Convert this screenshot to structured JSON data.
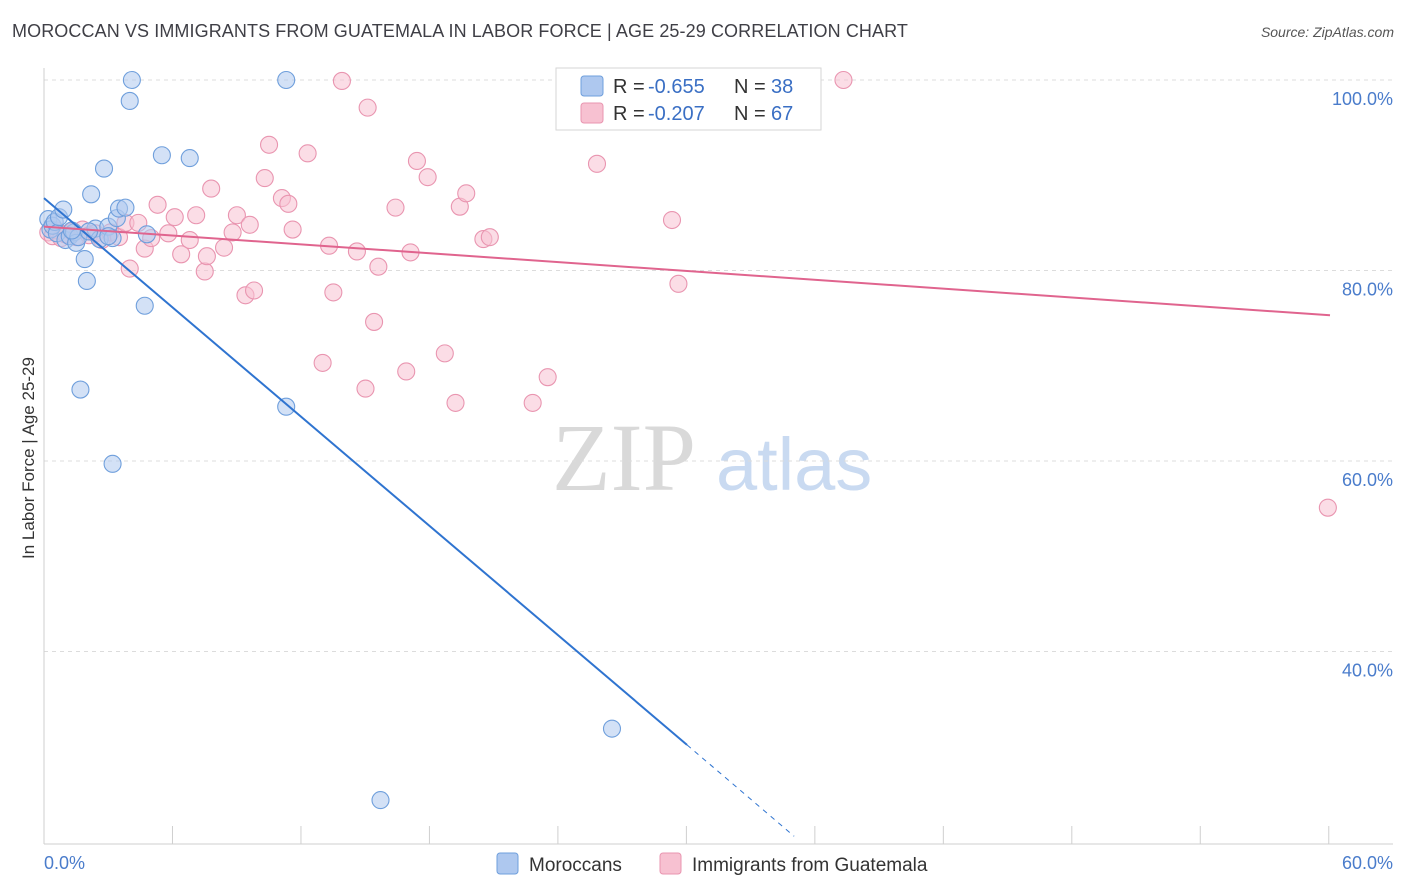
{
  "title": "MOROCCAN VS IMMIGRANTS FROM GUATEMALA IN LABOR FORCE | AGE 25-29 CORRELATION CHART",
  "source": "Source: ZipAtlas.com",
  "watermark": {
    "zip": "ZIP",
    "atlas": "atlas"
  },
  "legend": {
    "rows": [
      {
        "r_label": "R =",
        "r_value": "-0.655",
        "n_label": "N =",
        "n_value": "38"
      },
      {
        "r_label": "R =",
        "r_value": "-0.207",
        "n_label": "N =",
        "n_value": "67"
      }
    ]
  },
  "colors": {
    "moroccans_fill": "#aec8ef",
    "moroccans_stroke": "#6f9fdc",
    "moroccans_line": "#2f74d0",
    "guatemala_fill": "#f7c1d1",
    "guatemala_stroke": "#e995b0",
    "guatemala_line": "#e0648e",
    "tick_text": "#4a7ccb"
  },
  "chart_data": {
    "type": "scatter",
    "title": "MOROCCAN VS IMMIGRANTS FROM GUATEMALA IN LABOR FORCE | AGE 25-29 CORRELATION CHART",
    "xlabel": "",
    "ylabel": "In Labor Force | Age 25-29",
    "xlim": [
      0,
      60
    ],
    "ylim": [
      20,
      100
    ],
    "x_tick_labels": [
      "0.0%",
      "60.0%"
    ],
    "y_ticks": [
      40,
      60,
      80,
      100
    ],
    "y_tick_labels": [
      "40.0%",
      "60.0%",
      "80.0%",
      "100.0%"
    ],
    "grid": true,
    "legend_position": "top-center",
    "series": [
      {
        "name": "Moroccans",
        "r": -0.655,
        "n": 38,
        "trend": {
          "x0": 0,
          "y0": 87.6,
          "x1": 30,
          "y1": 30.2,
          "dash_to_x": 35,
          "dash_to_y": 20.6
        },
        "points": [
          [
            0.2,
            85.4
          ],
          [
            0.3,
            84.3
          ],
          [
            0.4,
            84.7
          ],
          [
            0.5,
            85.1
          ],
          [
            0.6,
            83.9
          ],
          [
            0.7,
            85.6
          ],
          [
            0.9,
            86.4
          ],
          [
            1.0,
            83.2
          ],
          [
            1.2,
            83.6
          ],
          [
            1.4,
            84.0
          ],
          [
            1.5,
            82.9
          ],
          [
            1.6,
            83.5
          ],
          [
            1.9,
            81.2
          ],
          [
            2.0,
            78.9
          ],
          [
            2.2,
            88.0
          ],
          [
            2.4,
            84.4
          ],
          [
            2.6,
            83.3
          ],
          [
            2.8,
            90.7
          ],
          [
            3.0,
            84.6
          ],
          [
            3.2,
            83.4
          ],
          [
            3.4,
            85.5
          ],
          [
            3.5,
            86.5
          ],
          [
            3.8,
            86.6
          ],
          [
            4.0,
            97.8
          ],
          [
            4.1,
            100.0
          ],
          [
            4.7,
            76.3
          ],
          [
            4.8,
            83.8
          ],
          [
            5.5,
            92.1
          ],
          [
            6.8,
            91.8
          ],
          [
            11.3,
            100.0
          ],
          [
            1.7,
            67.5
          ],
          [
            3.2,
            59.7
          ],
          [
            11.3,
            65.7
          ],
          [
            26.5,
            31.9
          ],
          [
            15.7,
            24.4
          ],
          [
            1.3,
            84.2
          ],
          [
            2.1,
            84.1
          ],
          [
            3.0,
            83.6
          ]
        ]
      },
      {
        "name": "Immigrants from Guatemala",
        "r": -0.207,
        "n": 67,
        "trend": {
          "x0": 0,
          "y0": 84.6,
          "x1": 60,
          "y1": 75.3
        },
        "points": [
          [
            0.2,
            84.0
          ],
          [
            0.4,
            83.6
          ],
          [
            0.6,
            84.2
          ],
          [
            0.8,
            83.4
          ],
          [
            1.0,
            83.8
          ],
          [
            1.3,
            84.1
          ],
          [
            1.5,
            83.5
          ],
          [
            1.8,
            84.3
          ],
          [
            2.1,
            83.7
          ],
          [
            2.4,
            83.9
          ],
          [
            2.7,
            83.2
          ],
          [
            3.1,
            84.0
          ],
          [
            3.5,
            83.5
          ],
          [
            3.8,
            85.0
          ],
          [
            4.0,
            80.2
          ],
          [
            4.4,
            85.0
          ],
          [
            4.7,
            82.3
          ],
          [
            5.0,
            83.4
          ],
          [
            5.3,
            86.9
          ],
          [
            5.8,
            83.9
          ],
          [
            6.1,
            85.6
          ],
          [
            6.4,
            81.7
          ],
          [
            6.8,
            83.2
          ],
          [
            7.1,
            85.8
          ],
          [
            7.5,
            79.9
          ],
          [
            7.6,
            81.5
          ],
          [
            7.8,
            88.6
          ],
          [
            8.4,
            82.4
          ],
          [
            8.8,
            84.0
          ],
          [
            9.0,
            85.8
          ],
          [
            9.4,
            77.4
          ],
          [
            9.6,
            84.8
          ],
          [
            9.8,
            77.9
          ],
          [
            10.3,
            89.7
          ],
          [
            10.5,
            93.2
          ],
          [
            11.1,
            87.6
          ],
          [
            11.4,
            87.0
          ],
          [
            11.6,
            84.3
          ],
          [
            12.3,
            92.3
          ],
          [
            13.0,
            70.3
          ],
          [
            13.3,
            82.6
          ],
          [
            13.5,
            77.7
          ],
          [
            13.9,
            99.9
          ],
          [
            14.6,
            82.0
          ],
          [
            15.0,
            67.6
          ],
          [
            15.1,
            97.1
          ],
          [
            15.4,
            74.6
          ],
          [
            15.6,
            80.4
          ],
          [
            16.4,
            86.6
          ],
          [
            16.9,
            69.4
          ],
          [
            17.1,
            81.9
          ],
          [
            17.4,
            91.5
          ],
          [
            17.9,
            89.8
          ],
          [
            18.7,
            71.3
          ],
          [
            19.2,
            66.1
          ],
          [
            19.4,
            86.7
          ],
          [
            19.7,
            88.1
          ],
          [
            20.5,
            83.3
          ],
          [
            20.8,
            83.5
          ],
          [
            22.8,
            66.1
          ],
          [
            23.5,
            68.8
          ],
          [
            25.8,
            91.2
          ],
          [
            29.3,
            85.3
          ],
          [
            29.6,
            78.6
          ],
          [
            32.0,
            100.0
          ],
          [
            37.3,
            100.0
          ],
          [
            59.9,
            55.1
          ]
        ]
      }
    ]
  },
  "bottom_legend": [
    "Moroccans",
    "Immigrants from Guatemala"
  ]
}
